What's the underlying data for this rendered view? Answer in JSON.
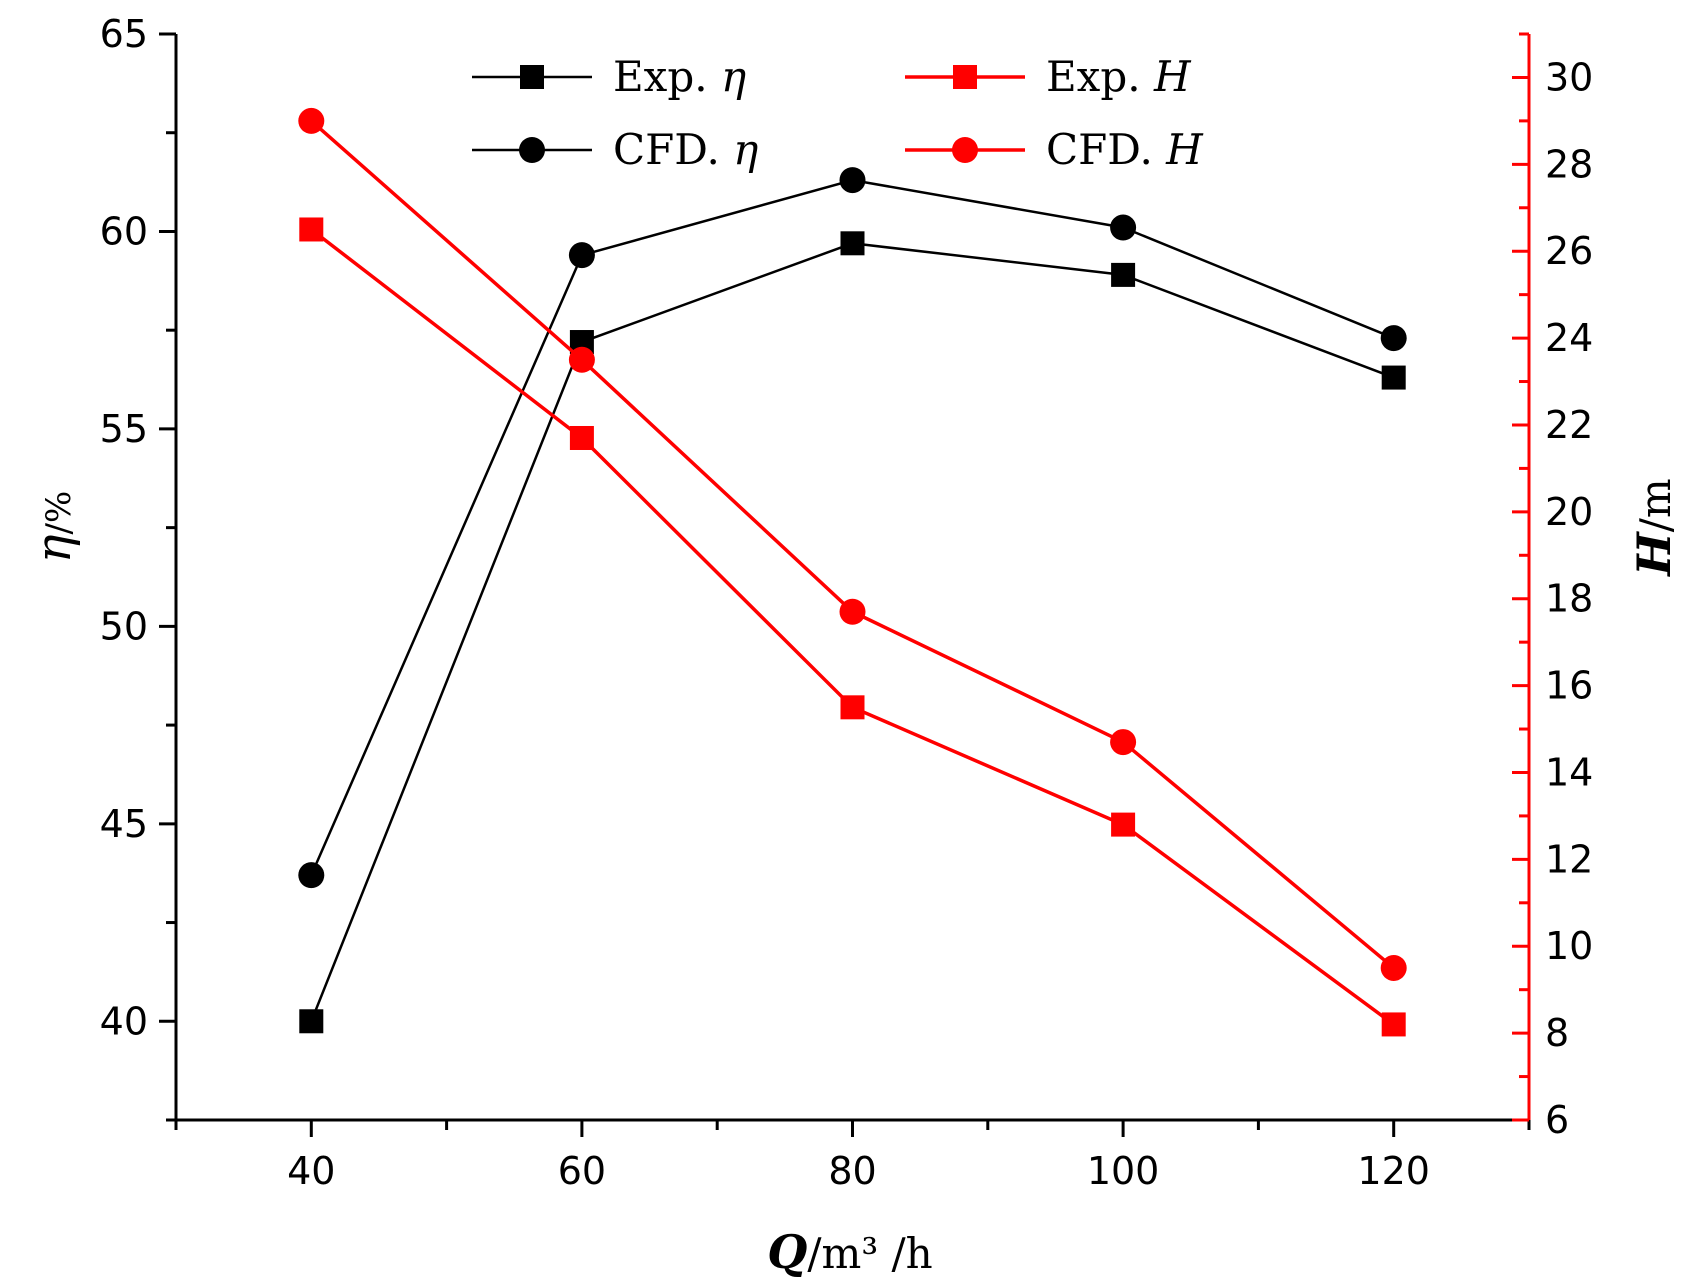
{
  "chart_data": {
    "type": "line",
    "title": "",
    "x": [
      40,
      60,
      80,
      100,
      120
    ],
    "xlim": [
      30,
      130
    ],
    "xticks": [
      "40",
      "60",
      "80",
      "100",
      "120"
    ],
    "xlabel": {
      "symbol": "Q",
      "unit": "/m³ /h"
    },
    "ylabel_left": {
      "symbol": "η",
      "unit": "/%"
    },
    "ylabel_right": {
      "symbol": "H",
      "unit": "/m"
    },
    "ylim_left": [
      37.5,
      65
    ],
    "ylim_right": [
      6,
      31
    ],
    "yticks_left": [
      "40",
      "45",
      "50",
      "55",
      "60",
      "65"
    ],
    "yticks_right": [
      "6",
      "8",
      "10",
      "12",
      "14",
      "16",
      "18",
      "20",
      "22",
      "24",
      "26",
      "28",
      "30"
    ],
    "series": [
      {
        "name": "Exp. η",
        "label_prefix": "Exp. ",
        "symbol": "η",
        "axis": "left",
        "marker": "square",
        "color": "#000000",
        "values": [
          40.0,
          57.2,
          59.7,
          58.9,
          56.3
        ]
      },
      {
        "name": "CFD. η",
        "label_prefix": "CFD. ",
        "symbol": "η",
        "axis": "left",
        "marker": "circle",
        "color": "#000000",
        "values": [
          43.7,
          59.4,
          61.3,
          60.1,
          57.3
        ]
      },
      {
        "name": "Exp. H",
        "label_prefix": "Exp. ",
        "symbol": "H",
        "axis": "right",
        "marker": "square",
        "color": "#ff0000",
        "values": [
          26.5,
          21.7,
          15.5,
          12.8,
          8.2
        ]
      },
      {
        "name": "CFD. H",
        "label_prefix": "CFD. ",
        "symbol": "H",
        "axis": "right",
        "marker": "circle",
        "color": "#ff0000",
        "values": [
          29.0,
          23.5,
          17.7,
          14.7,
          9.5
        ]
      }
    ],
    "legend": "top",
    "grid": false
  }
}
